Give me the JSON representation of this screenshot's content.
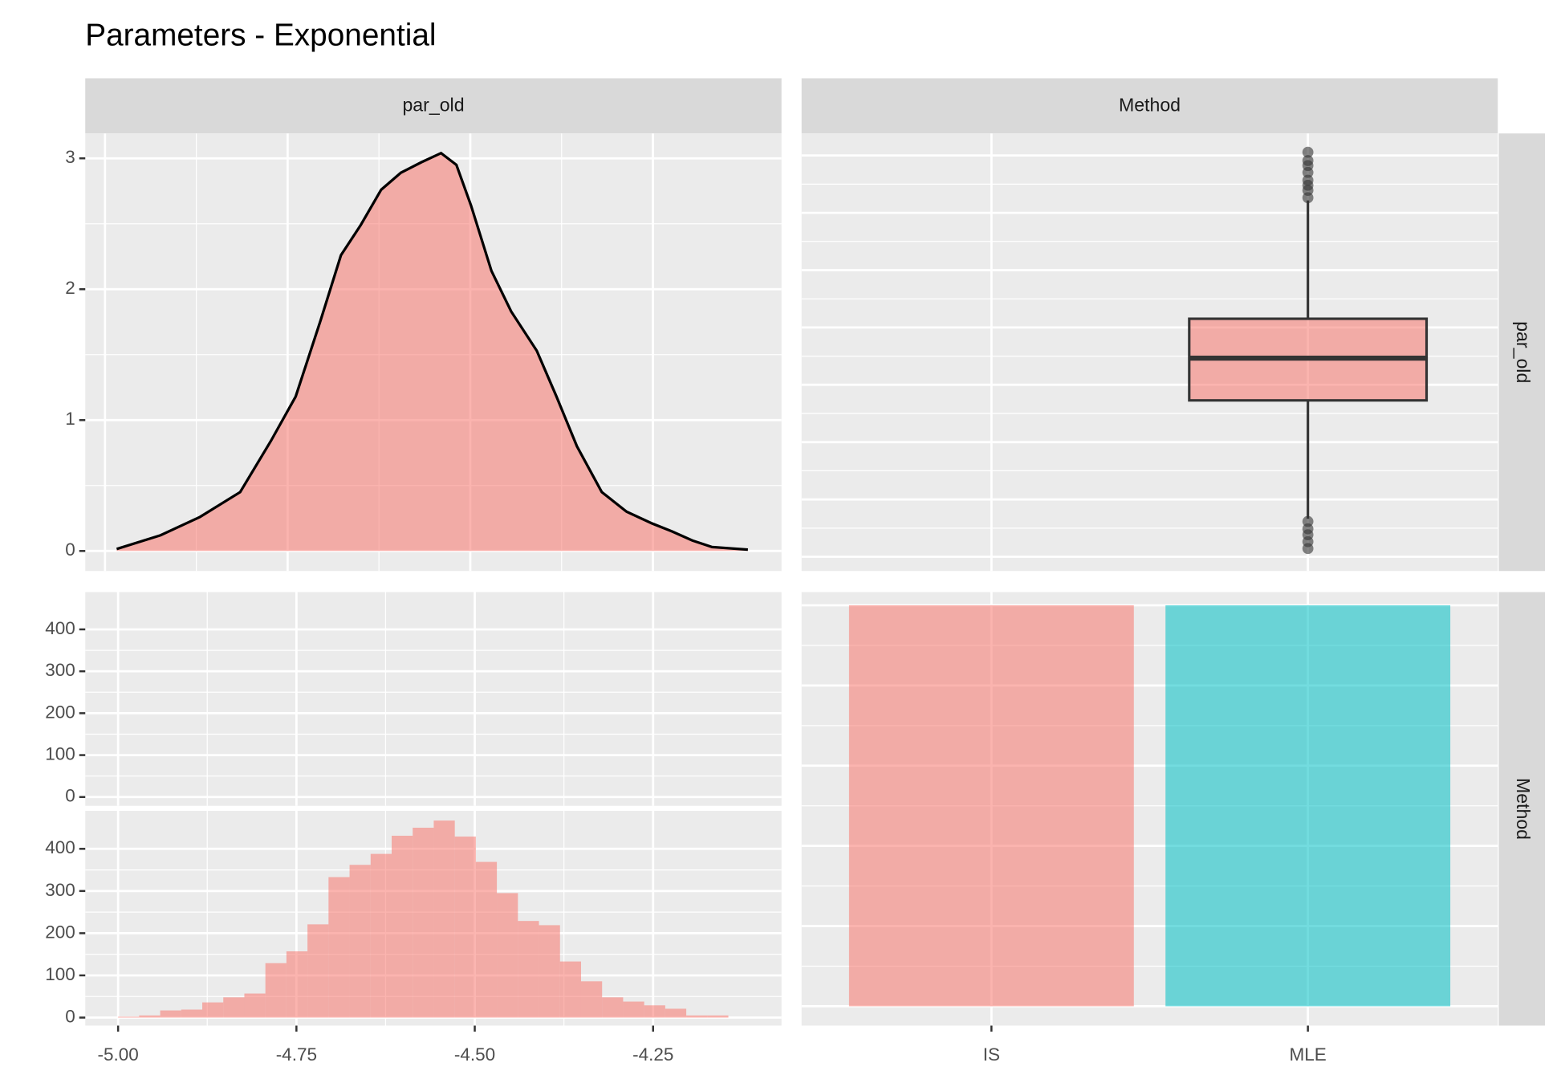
{
  "title": "Parameters - Exponential",
  "strips": {
    "top": [
      "par_old",
      "Method"
    ],
    "right": [
      "par_old",
      "Method"
    ]
  },
  "chart_data": [
    {
      "type": "density",
      "color": "#F8766D",
      "x": [
        -4.984,
        -4.924,
        -4.87,
        -4.815,
        -4.773,
        -4.739,
        -4.705,
        -4.677,
        -4.65,
        -4.622,
        -4.595,
        -4.567,
        -4.54,
        -4.519,
        -4.499,
        -4.471,
        -4.444,
        -4.409,
        -4.382,
        -4.354,
        -4.32,
        -4.286,
        -4.251,
        -4.224,
        -4.196,
        -4.169,
        -4.12
      ],
      "values": [
        0.015,
        0.12,
        0.26,
        0.45,
        0.84,
        1.18,
        1.76,
        2.26,
        2.49,
        2.76,
        2.89,
        2.97,
        3.04,
        2.95,
        2.64,
        2.14,
        1.83,
        1.53,
        1.18,
        0.8,
        0.45,
        0.3,
        0.21,
        0.15,
        0.08,
        0.03,
        0.01
      ],
      "xlim": [
        -5.027,
        -4.074
      ],
      "ylim": [
        -0.153,
        3.19
      ],
      "xticks": [
        -5,
        -4.75,
        -4.5,
        -4.25
      ],
      "yticks": [
        0,
        1,
        2,
        3
      ]
    },
    {
      "type": "boxplot",
      "color": "#F8766D",
      "boxes": [
        null,
        {
          "whislo": -4.917,
          "q1": -4.659,
          "median": -4.567,
          "q3": -4.481,
          "whishi": -4.223,
          "outliers": [
            -4.217,
            -4.201,
            -4.19,
            -4.179,
            -4.162,
            -4.147,
            -4.136,
            -4.118,
            -4.923,
            -4.939,
            -4.952,
            -4.967,
            -4.982
          ]
        }
      ],
      "ylim": [
        -5.031,
        -4.077
      ],
      "yticks": [
        -5,
        -4.875,
        -4.75,
        -4.625,
        -4.5,
        -4.375,
        -4.25,
        -4.125
      ]
    },
    {
      "type": "histogram",
      "color": "#F8766D",
      "bins": [
        -5.0,
        -4.9705,
        -4.941,
        -4.9115,
        -4.882,
        -4.8525,
        -4.823,
        -4.7935,
        -4.764,
        -4.7345,
        -4.705,
        -4.6755,
        -4.646,
        -4.6165,
        -4.587,
        -4.5575,
        -4.528,
        -4.4985,
        -4.469,
        -4.4395,
        -4.41,
        -4.3805,
        -4.351,
        -4.3215,
        -4.292,
        -4.2625,
        -4.233,
        -4.2035,
        -4.174,
        -4.1445
      ],
      "xlim": [
        -5.046,
        -4.07
      ],
      "xticks": [
        {
          "value": -5,
          "label": "-5.00"
        },
        {
          "value": -4.75,
          "label": "-4.75"
        },
        {
          "value": -4.5,
          "label": "-4.50"
        },
        {
          "value": -4.25,
          "label": "-4.25"
        }
      ],
      "facets": [
        {
          "ylim": [
            -21,
            489
          ],
          "yticks": [
            0,
            100,
            200,
            300,
            400
          ]
        },
        {
          "ylim": [
            -19,
            490
          ],
          "yticks": [
            0,
            100,
            200,
            300,
            400
          ],
          "counts": [
            2,
            5,
            17,
            19,
            36,
            48,
            57,
            129,
            157,
            221,
            333,
            362,
            388,
            431,
            450,
            467,
            429,
            369,
            295,
            229,
            219,
            133,
            86,
            48,
            38,
            29,
            21,
            5,
            5
          ]
        }
      ]
    },
    {
      "type": "bar",
      "categories": [
        "IS",
        "MLE"
      ],
      "values": [
        5000,
        5000
      ],
      "colors": [
        "#F8766D",
        "#00BFC4"
      ],
      "ylim": [
        -241,
        5165
      ],
      "yticks": [
        0,
        1000,
        2000,
        3000,
        4000,
        5000
      ]
    }
  ]
}
